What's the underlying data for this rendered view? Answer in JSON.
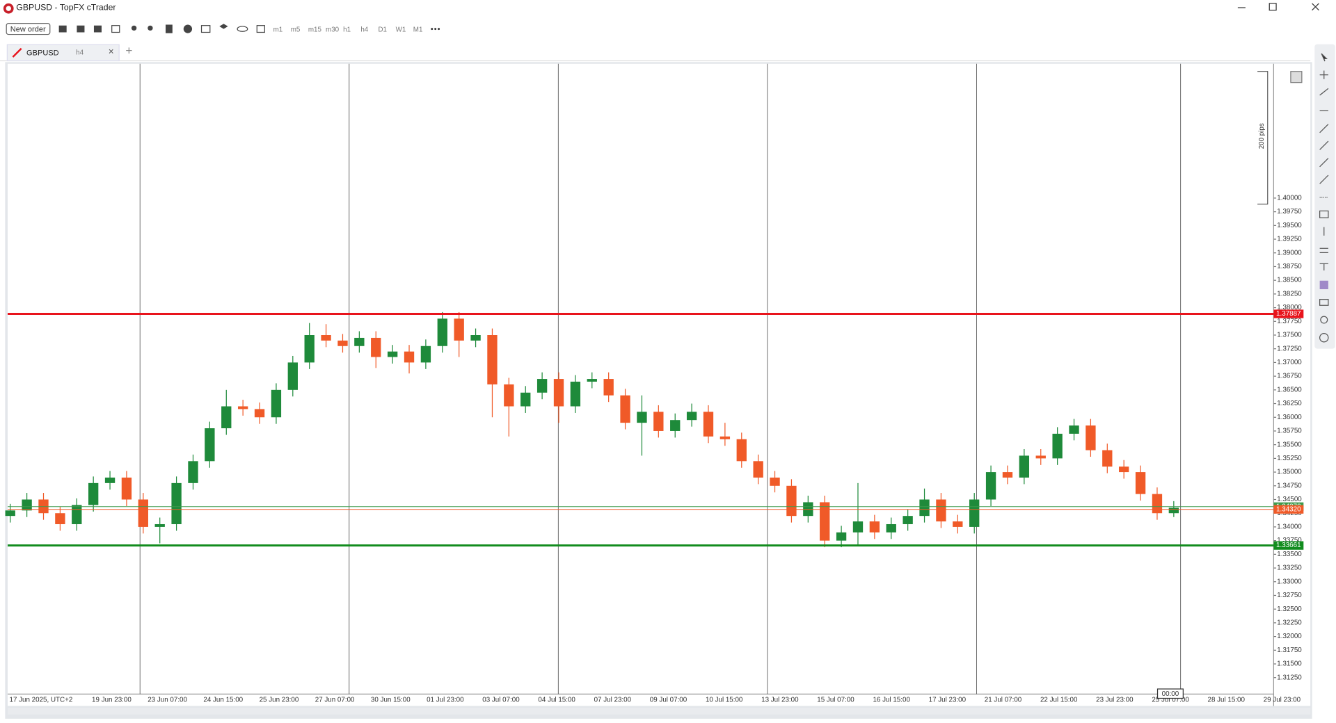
{
  "window": {
    "title": "GBPUSD - TopFX cTrader"
  },
  "toolbar": {
    "new_order": "New order",
    "timeframes": [
      "m1",
      "m5",
      "m15",
      "m30",
      "h1",
      "h4",
      "D1",
      "W1",
      "M1"
    ]
  },
  "tab": {
    "symbol": "GBPUSD",
    "timeframe": "h4"
  },
  "chart_data": {
    "type": "candlestick",
    "up_color": "#1e8a3a",
    "down_color": "#f05a28",
    "measure_label": "200 pips",
    "cursor_time": "00:00",
    "categories": [
      "17 Jun 2025, UTC+2",
      "19 Jun 23:00",
      "23 Jun 07:00",
      "24 Jun 15:00",
      "25 Jun 23:00",
      "27 Jun 07:00",
      "30 Jun 15:00",
      "01 Jul 23:00",
      "03 Jul 07:00",
      "04 Jul 15:00",
      "07 Jul 23:00",
      "09 Jul 07:00",
      "10 Jul 15:00",
      "13 Jul 23:00",
      "15 Jul 07:00",
      "16 Jul 15:00",
      "17 Jul 23:00",
      "21 Jul 07:00",
      "22 Jul 15:00",
      "23 Jul 23:00",
      "25 Jul 07:00",
      "28 Jul 15:00",
      "29 Jul 23:00"
    ],
    "ylim": [
      1.3095,
      1.4245
    ],
    "yticks": [
      {
        "value": 1.4,
        "label": "1.40000"
      },
      {
        "value": 1.3975,
        "label": "1.39750"
      },
      {
        "value": 1.395,
        "label": "1.39500"
      },
      {
        "value": 1.3925,
        "label": "1.39250"
      },
      {
        "value": 1.39,
        "label": "1.39000"
      },
      {
        "value": 1.3875,
        "label": "1.38750"
      },
      {
        "value": 1.385,
        "label": "1.38500"
      },
      {
        "value": 1.3825,
        "label": "1.38250"
      },
      {
        "value": 1.38,
        "label": "1.38000"
      },
      {
        "value": 1.3775,
        "label": "1.37750"
      },
      {
        "value": 1.375,
        "label": "1.37500"
      },
      {
        "value": 1.3725,
        "label": "1.37250"
      },
      {
        "value": 1.37,
        "label": "1.37000"
      },
      {
        "value": 1.3675,
        "label": "1.36750"
      },
      {
        "value": 1.365,
        "label": "1.36500"
      },
      {
        "value": 1.3625,
        "label": "1.36250"
      },
      {
        "value": 1.36,
        "label": "1.36000"
      },
      {
        "value": 1.3575,
        "label": "1.35750"
      },
      {
        "value": 1.355,
        "label": "1.35500"
      },
      {
        "value": 1.3525,
        "label": "1.35250"
      },
      {
        "value": 1.35,
        "label": "1.35000"
      },
      {
        "value": 1.3475,
        "label": "1.34750"
      },
      {
        "value": 1.345,
        "label": "1.34500"
      },
      {
        "value": 1.3425,
        "label": "1.34250"
      },
      {
        "value": 1.34,
        "label": "1.34000"
      },
      {
        "value": 1.3375,
        "label": "1.33750"
      },
      {
        "value": 1.335,
        "label": "1.33500"
      },
      {
        "value": 1.3325,
        "label": "1.33250"
      },
      {
        "value": 1.33,
        "label": "1.33000"
      },
      {
        "value": 1.3275,
        "label": "1.32750"
      },
      {
        "value": 1.325,
        "label": "1.32500"
      },
      {
        "value": 1.3225,
        "label": "1.32250"
      },
      {
        "value": 1.32,
        "label": "1.32000"
      },
      {
        "value": 1.3175,
        "label": "1.31750"
      },
      {
        "value": 1.315,
        "label": "1.31500"
      },
      {
        "value": 1.3125,
        "label": "1.31250"
      }
    ],
    "lines": [
      {
        "value": 1.37887,
        "color": "#e8141c",
        "width": 2.5
      },
      {
        "value": 1.33661,
        "color": "#128c1e",
        "width": 2.5
      },
      {
        "value": 1.3437,
        "label": "1.34370",
        "color": "#3f9a4c",
        "width": 0.8
      },
      {
        "value": 1.3432,
        "label": "1.34320",
        "color": "#f05a28",
        "width": 0.8
      }
    ],
    "candles": {
      "open": [
        1.342,
        1.343,
        1.345,
        1.3425,
        1.3405,
        1.344,
        1.348,
        1.349,
        1.345,
        1.34,
        1.3405,
        1.348,
        1.352,
        1.358,
        1.362,
        1.3615,
        1.36,
        1.365,
        1.37,
        1.375,
        1.374,
        1.373,
        1.3745,
        1.371,
        1.372,
        1.37,
        1.373,
        1.378,
        1.374,
        1.375,
        1.366,
        1.362,
        1.3645,
        1.367,
        1.362,
        1.3665,
        1.367,
        1.364,
        1.359,
        1.361,
        1.3575,
        1.3595,
        1.361,
        1.3565,
        1.356,
        1.352,
        1.349,
        1.3475,
        1.342,
        1.3445,
        1.3375,
        1.339,
        1.341,
        1.339,
        1.3405,
        1.342,
        1.345,
        1.341,
        1.34,
        1.345,
        1.35,
        1.349,
        1.353,
        1.3525,
        1.357,
        1.3585,
        1.354,
        1.351,
        1.35,
        1.346,
        1.3425
      ],
      "high": [
        1.3442,
        1.3462,
        1.3462,
        1.3437,
        1.3452,
        1.3492,
        1.3502,
        1.3502,
        1.3462,
        1.3417,
        1.3492,
        1.3532,
        1.3592,
        1.365,
        1.3632,
        1.3627,
        1.3662,
        1.3712,
        1.3772,
        1.377,
        1.3752,
        1.3757,
        1.3757,
        1.3732,
        1.3732,
        1.3742,
        1.3792,
        1.3792,
        1.3762,
        1.3762,
        1.3672,
        1.3657,
        1.3682,
        1.3682,
        1.3677,
        1.3682,
        1.3682,
        1.3652,
        1.364,
        1.3622,
        1.3607,
        1.3625,
        1.3622,
        1.359,
        1.3572,
        1.3532,
        1.3502,
        1.3487,
        1.3457,
        1.3457,
        1.3402,
        1.348,
        1.3422,
        1.3417,
        1.3432,
        1.347,
        1.3462,
        1.3422,
        1.3462,
        1.3512,
        1.3512,
        1.3542,
        1.3542,
        1.3582,
        1.3597,
        1.3597,
        1.3552,
        1.3522,
        1.3512,
        1.3472,
        1.3447
      ],
      "low": [
        1.3408,
        1.3418,
        1.3413,
        1.3393,
        1.3393,
        1.3428,
        1.3468,
        1.3438,
        1.3388,
        1.337,
        1.3393,
        1.3468,
        1.3508,
        1.3568,
        1.3603,
        1.3588,
        1.3588,
        1.3638,
        1.3688,
        1.3728,
        1.3718,
        1.3718,
        1.369,
        1.3698,
        1.368,
        1.3688,
        1.3718,
        1.371,
        1.3728,
        1.36,
        1.3565,
        1.3608,
        1.3633,
        1.359,
        1.3608,
        1.3653,
        1.3628,
        1.3578,
        1.353,
        1.3563,
        1.3563,
        1.3583,
        1.3553,
        1.3548,
        1.3508,
        1.3478,
        1.3463,
        1.3408,
        1.3408,
        1.3363,
        1.3363,
        1.3365,
        1.3378,
        1.3378,
        1.3393,
        1.3408,
        1.3398,
        1.3388,
        1.3388,
        1.3438,
        1.3478,
        1.3478,
        1.3513,
        1.3513,
        1.3558,
        1.3528,
        1.3498,
        1.3488,
        1.3448,
        1.3413,
        1.3418
      ],
      "close": [
        1.343,
        1.345,
        1.3425,
        1.3405,
        1.344,
        1.348,
        1.349,
        1.345,
        1.34,
        1.3405,
        1.348,
        1.352,
        1.358,
        1.362,
        1.3615,
        1.36,
        1.365,
        1.37,
        1.375,
        1.374,
        1.373,
        1.3745,
        1.371,
        1.372,
        1.37,
        1.373,
        1.378,
        1.374,
        1.375,
        1.366,
        1.362,
        1.3645,
        1.367,
        1.362,
        1.3665,
        1.367,
        1.364,
        1.359,
        1.361,
        1.3575,
        1.3595,
        1.361,
        1.3565,
        1.356,
        1.352,
        1.349,
        1.3475,
        1.342,
        1.3445,
        1.3375,
        1.339,
        1.341,
        1.339,
        1.3405,
        1.342,
        1.345,
        1.341,
        1.34,
        1.345,
        1.35,
        1.349,
        1.353,
        1.3525,
        1.357,
        1.3585,
        1.354,
        1.351,
        1.35,
        1.346,
        1.3425,
        1.3435
      ]
    }
  }
}
